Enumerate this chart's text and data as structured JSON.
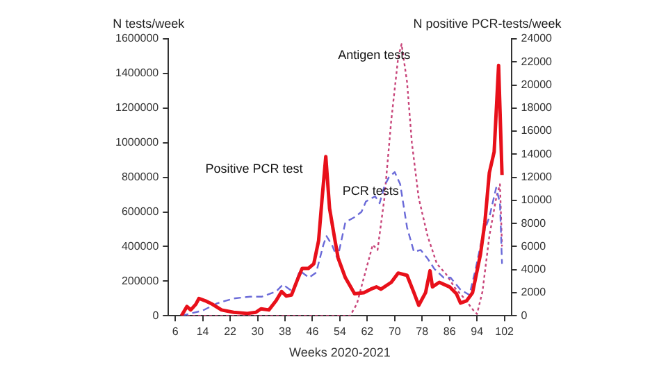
{
  "chart_data": {
    "type": "line",
    "xlabel": "Weeks 2020-2021",
    "ylabel": "N tests/week",
    "y2label": "N positive PCR-tests/week",
    "xlim": [
      4,
      104
    ],
    "xticks": [
      6,
      14,
      22,
      30,
      38,
      46,
      54,
      62,
      70,
      78,
      86,
      94,
      102
    ],
    "ylim": [
      0,
      1600000
    ],
    "yticks": [
      0,
      200000,
      400000,
      600000,
      800000,
      1000000,
      1200000,
      1400000,
      1600000
    ],
    "y2lim": [
      0,
      24000
    ],
    "y2ticks": [
      0,
      2000,
      4000,
      6000,
      8000,
      10000,
      12000,
      14000,
      16000,
      18000,
      20000,
      22000,
      24000
    ],
    "grid": false,
    "legend": false,
    "marker": "none",
    "series": [
      {
        "name": "Positive PCR test",
        "axis": "y2",
        "color": "#e8101a",
        "line_style": "solid",
        "x": [
          7.8,
          9.4,
          10.5,
          12,
          12.9,
          14.7,
          16.8,
          19.5,
          23,
          27,
          29.5,
          31,
          33.3,
          35.4,
          37,
          38.4,
          39.9,
          41.6,
          43,
          44.8,
          46.4,
          47.8,
          48.8,
          49.9,
          51,
          52.6,
          53.5,
          55.6,
          58.3,
          61,
          63,
          64.7,
          66,
          69,
          71,
          73.6,
          75.6,
          77,
          79,
          80.3,
          81,
          83,
          86,
          88,
          89.2,
          91,
          92.7,
          95,
          96.3,
          97.6,
          99,
          100.3,
          101.3
        ],
        "values": [
          0,
          800,
          500,
          1000,
          1500,
          1300,
          1000,
          500,
          300,
          200,
          300,
          600,
          500,
          1300,
          2100,
          1700,
          1800,
          3100,
          4100,
          4100,
          4500,
          6500,
          10100,
          13800,
          9300,
          6500,
          5000,
          3300,
          1900,
          2000,
          2300,
          2500,
          2300,
          2900,
          3700,
          3500,
          2000,
          900,
          2000,
          3900,
          2500,
          2900,
          2500,
          1900,
          1100,
          1300,
          2000,
          5300,
          8100,
          12400,
          14200,
          21700,
          12200
        ]
      },
      {
        "name": "PCR tests",
        "axis": "y",
        "color": "#6a6ad8",
        "line_style": "dashed",
        "x": [
          7.8,
          14,
          18,
          23,
          27.8,
          31.2,
          35.4,
          37.4,
          40.2,
          42.3,
          45,
          47.1,
          49.2,
          50.1,
          51.7,
          53.3,
          55.6,
          58.3,
          60.3,
          61.6,
          64.3,
          65.6,
          67,
          68.3,
          70,
          71.6,
          73.6,
          75.6,
          77.6,
          79.6,
          81.6,
          84.3,
          86.3,
          89.2,
          91.8,
          93.6,
          95.6,
          97.6,
          99.6,
          100.7,
          101.3
        ],
        "values": [
          0,
          30000,
          70000,
          100000,
          110000,
          110000,
          140000,
          180000,
          140000,
          260000,
          220000,
          250000,
          410000,
          460000,
          410000,
          330000,
          540000,
          570000,
          600000,
          660000,
          690000,
          650000,
          750000,
          800000,
          830000,
          760000,
          510000,
          370000,
          380000,
          330000,
          270000,
          220000,
          220000,
          150000,
          120000,
          270000,
          460000,
          570000,
          740000,
          650000,
          300000
        ]
      },
      {
        "name": "Antigen tests",
        "axis": "y",
        "color": "#c8457a",
        "line_style": "dotted",
        "x": [
          7.8,
          54,
          57,
          59,
          61,
          63.6,
          65,
          67,
          69,
          71,
          72,
          73.6,
          75,
          77,
          79.6,
          82.3,
          85,
          87.6,
          90.3,
          93,
          94,
          95.6,
          97.6,
          99.6,
          100.7,
          101.3
        ],
        "values": [
          0,
          0,
          0,
          70000,
          220000,
          410000,
          380000,
          680000,
          1130000,
          1490000,
          1570000,
          1350000,
          1000000,
          680000,
          460000,
          300000,
          240000,
          160000,
          100000,
          30000,
          10000,
          140000,
          460000,
          680000,
          760000,
          400000
        ]
      }
    ]
  }
}
